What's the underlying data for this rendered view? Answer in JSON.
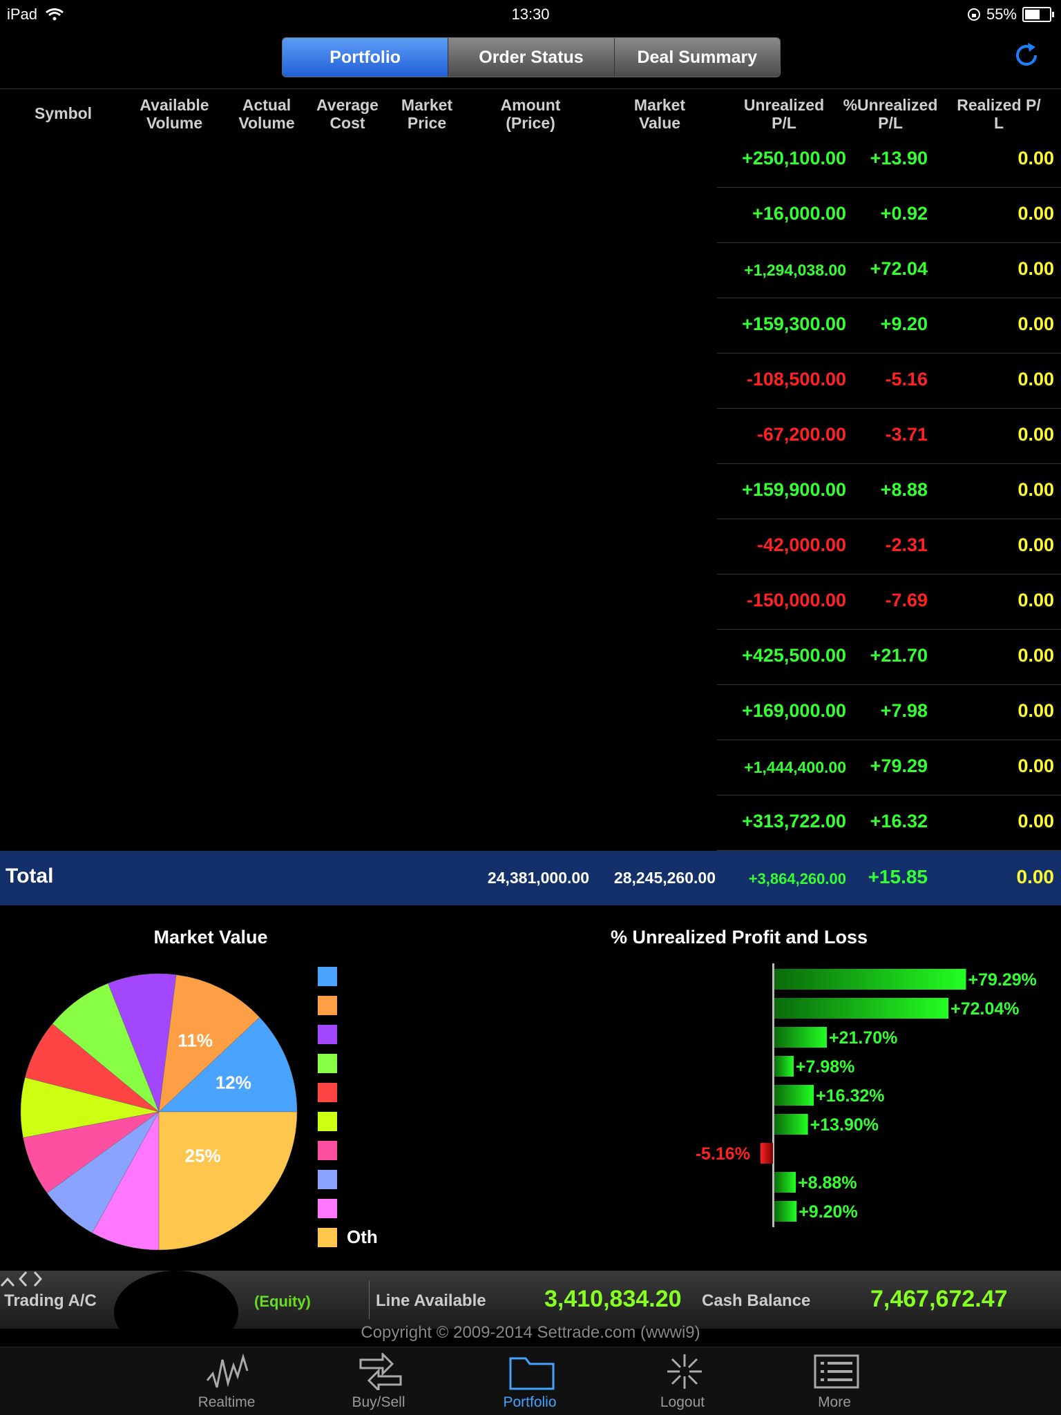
{
  "status_bar": {
    "device": "iPad",
    "time": "13:30",
    "battery": "55%"
  },
  "segments": [
    "Portfolio",
    "Order Status",
    "Deal Summary"
  ],
  "columns": {
    "symbol": "Symbol",
    "available_volume": [
      "Available",
      "Volume"
    ],
    "actual_volume": [
      "Actual",
      "Volume"
    ],
    "average_cost": [
      "Average",
      "Cost"
    ],
    "market_price": [
      "Market",
      "Price"
    ],
    "amount": [
      "Amount",
      "(Price)"
    ],
    "market_value": [
      "Market",
      "Value"
    ],
    "unrealized_pl": [
      "Unrealized",
      "P/L"
    ],
    "pct_unrealized_pl": [
      "%Unrealized",
      "P/L"
    ],
    "realized_pl": [
      "Realized P/",
      "L"
    ]
  },
  "rows": [
    {
      "unrealized": "+250,100.00",
      "pct": "+13.90",
      "realized": "0.00"
    },
    {
      "unrealized": "+16,000.00",
      "pct": "+0.92",
      "realized": "0.00"
    },
    {
      "unrealized": "+1,294,038.00",
      "pct": "+72.04",
      "realized": "0.00"
    },
    {
      "unrealized": "+159,300.00",
      "pct": "+9.20",
      "realized": "0.00"
    },
    {
      "unrealized": "-108,500.00",
      "pct": "-5.16",
      "realized": "0.00"
    },
    {
      "unrealized": "-67,200.00",
      "pct": "-3.71",
      "realized": "0.00"
    },
    {
      "unrealized": "+159,900.00",
      "pct": "+8.88",
      "realized": "0.00"
    },
    {
      "unrealized": "-42,000.00",
      "pct": "-2.31",
      "realized": "0.00"
    },
    {
      "unrealized": "-150,000.00",
      "pct": "-7.69",
      "realized": "0.00"
    },
    {
      "unrealized": "+425,500.00",
      "pct": "+21.70",
      "realized": "0.00"
    },
    {
      "unrealized": "+169,000.00",
      "pct": "+7.98",
      "realized": "0.00"
    },
    {
      "unrealized": "+1,444,400.00",
      "pct": "+79.29",
      "realized": "0.00"
    },
    {
      "unrealized": "+313,722.00",
      "pct": "+16.32",
      "realized": "0.00"
    }
  ],
  "total": {
    "label": "Total",
    "amount": "24,381,000.00",
    "market_value": "28,245,260.00",
    "unrealized": "+3,864,260.00",
    "pct": "+15.85",
    "realized": "0.00"
  },
  "chart_data": [
    {
      "type": "pie",
      "title": "Market Value",
      "slices": [
        {
          "value": 12,
          "label": "12%",
          "color": "#4aa3ff"
        },
        {
          "value": 11,
          "label": "11%",
          "color": "#ff9f45"
        },
        {
          "value": 8,
          "label": "",
          "color": "#a347ff"
        },
        {
          "value": 8,
          "label": "",
          "color": "#88ff44"
        },
        {
          "value": 7,
          "label": "",
          "color": "#ff4444"
        },
        {
          "value": 7,
          "label": "",
          "color": "#ccff11"
        },
        {
          "value": 7,
          "label": "",
          "color": "#ff4fa0"
        },
        {
          "value": 7,
          "label": "",
          "color": "#8aa3ff"
        },
        {
          "value": 8,
          "label": "",
          "color": "#ff77ff"
        },
        {
          "value": 25,
          "label": "25%",
          "color": "#ffc64d"
        }
      ],
      "legend": [
        "",
        "",
        "",
        "",
        "",
        "",
        "",
        "",
        "",
        "Oth"
      ]
    },
    {
      "type": "bar",
      "orientation": "horizontal",
      "title": "% Unrealized Profit and Loss",
      "values": [
        79.29,
        72.04,
        21.7,
        7.98,
        16.32,
        13.9,
        -5.16,
        8.88,
        9.2
      ],
      "labels": [
        "+79.29%",
        "+72.04%",
        "+21.70%",
        "+7.98%",
        "+16.32%",
        "+13.90%",
        "-5.16%",
        "+8.88%",
        "+9.20%"
      ]
    }
  ],
  "account": {
    "trading_label": "Trading A/C",
    "type": "(Equity)",
    "line_label": "Line Available",
    "line_value": "3,410,834.20",
    "cash_label": "Cash Balance",
    "cash_value": "7,467,672.47"
  },
  "copyright": "Copyright © 2009-2014 Settrade.com (wwwi9)",
  "tabs": [
    "Realtime",
    "Buy/Sell",
    "Portfolio",
    "Logout",
    "More"
  ]
}
